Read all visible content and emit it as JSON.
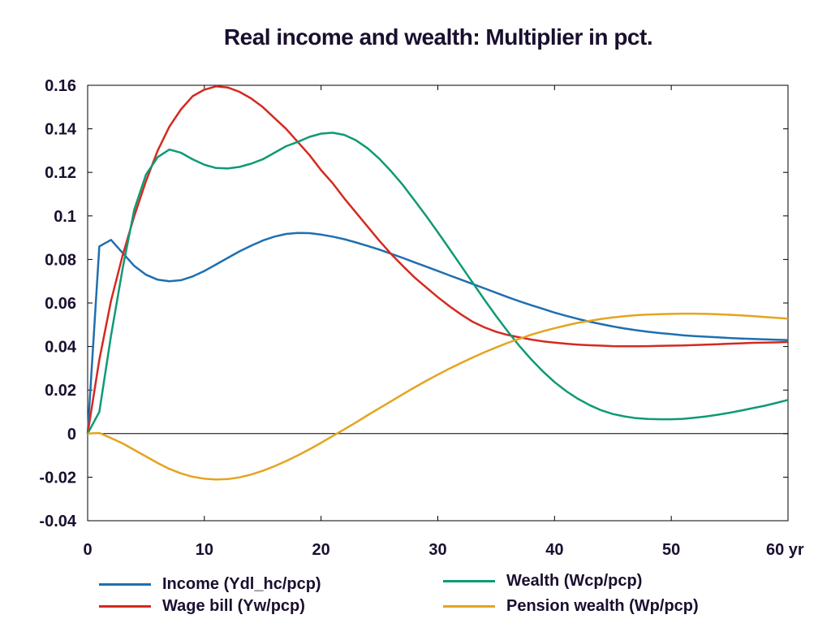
{
  "chart_data": {
    "type": "line",
    "title": "Real income and wealth: Multiplier in pct.",
    "xlabel": "",
    "ylabel": "",
    "xlim": [
      0,
      60
    ],
    "ylim": [
      -0.04,
      0.16
    ],
    "x_ticks": [
      "0",
      "10",
      "20",
      "30",
      "40",
      "50",
      "60 yr"
    ],
    "y_ticks": [
      "0.16",
      "0.14",
      "0.12",
      "0.1",
      "0.08",
      "0.06",
      "0.04",
      "0.02",
      "0",
      "-0.02",
      "-0.04"
    ],
    "x": [
      0,
      1,
      2,
      3,
      4,
      5,
      6,
      7,
      8,
      9,
      10,
      11,
      12,
      13,
      14,
      15,
      16,
      17,
      18,
      19,
      20,
      21,
      22,
      23,
      24,
      25,
      26,
      27,
      28,
      29,
      30,
      31,
      32,
      33,
      34,
      35,
      36,
      37,
      38,
      39,
      40,
      41,
      42,
      43,
      44,
      45,
      46,
      47,
      48,
      49,
      50,
      51,
      52,
      53,
      54,
      55,
      56,
      57,
      58,
      59,
      60
    ],
    "series": [
      {
        "name": "Income (Ydl_hc/pcp)",
        "color": "#1f6fb0",
        "values": [
          0,
          0.086,
          0.089,
          0.083,
          0.077,
          0.073,
          0.0707,
          0.07,
          0.0705,
          0.0722,
          0.0747,
          0.0777,
          0.0807,
          0.0837,
          0.0863,
          0.0887,
          0.0905,
          0.0917,
          0.0922,
          0.0921,
          0.0914,
          0.0905,
          0.0893,
          0.0878,
          0.0862,
          0.0845,
          0.0826,
          0.0807,
          0.0787,
          0.0767,
          0.0747,
          0.0727,
          0.0707,
          0.0687,
          0.0667,
          0.0647,
          0.0627,
          0.0608,
          0.059,
          0.0573,
          0.0556,
          0.0541,
          0.0527,
          0.0514,
          0.0503,
          0.0492,
          0.0483,
          0.0475,
          0.0468,
          0.0462,
          0.0457,
          0.0452,
          0.0448,
          0.0445,
          0.0442,
          0.0439,
          0.0437,
          0.0435,
          0.0433,
          0.0431,
          0.043
        ]
      },
      {
        "name": "Wage bill (Yw/pcp)",
        "color": "#d42a20",
        "values": [
          0,
          0.034,
          0.061,
          0.082,
          0.1,
          0.116,
          0.13,
          0.141,
          0.149,
          0.155,
          0.158,
          0.1595,
          0.159,
          0.157,
          0.154,
          0.15,
          0.145,
          0.14,
          0.134,
          0.128,
          0.121,
          0.115,
          0.108,
          0.1015,
          0.095,
          0.0885,
          0.0825,
          0.077,
          0.0718,
          0.0672,
          0.0627,
          0.0585,
          0.0547,
          0.0513,
          0.0488,
          0.0468,
          0.0453,
          0.0442,
          0.0432,
          0.0424,
          0.0418,
          0.0413,
          0.0409,
          0.0406,
          0.0404,
          0.0402,
          0.0401,
          0.0401,
          0.0402,
          0.0403,
          0.0404,
          0.0405,
          0.0407,
          0.0409,
          0.0411,
          0.0413,
          0.0415,
          0.0417,
          0.0418,
          0.0419,
          0.0421
        ]
      },
      {
        "name": "Wealth (Wcp/pcp)",
        "color": "#0f9a75",
        "values": [
          0,
          0.01,
          0.045,
          0.076,
          0.103,
          0.119,
          0.127,
          0.1305,
          0.129,
          0.126,
          0.1235,
          0.122,
          0.1218,
          0.1225,
          0.124,
          0.126,
          0.129,
          0.132,
          0.134,
          0.1363,
          0.1378,
          0.1382,
          0.1372,
          0.1347,
          0.131,
          0.1262,
          0.1205,
          0.1142,
          0.1072,
          0.1,
          0.0925,
          0.0848,
          0.077,
          0.0692,
          0.0615,
          0.054,
          0.0469,
          0.0402,
          0.0341,
          0.0286,
          0.0237,
          0.0195,
          0.016,
          0.0131,
          0.0107,
          0.009,
          0.0079,
          0.0071,
          0.0067,
          0.0066,
          0.0066,
          0.0068,
          0.0073,
          0.0079,
          0.0087,
          0.0096,
          0.0106,
          0.0117,
          0.0128,
          0.0141,
          0.0155
        ]
      },
      {
        "name": "Pension wealth (Wp/pcp)",
        "color": "#e5a41e",
        "values": [
          0,
          0.0003,
          -0.002,
          -0.0045,
          -0.0075,
          -0.0105,
          -0.0135,
          -0.0162,
          -0.0183,
          -0.0198,
          -0.0207,
          -0.0211,
          -0.0209,
          -0.0201,
          -0.0188,
          -0.0171,
          -0.015,
          -0.0126,
          -0.01,
          -0.0072,
          -0.0042,
          -0.0011,
          0.002,
          0.0052,
          0.0085,
          0.0117,
          0.0149,
          0.0181,
          0.0212,
          0.0242,
          0.0271,
          0.0299,
          0.0325,
          0.035,
          0.0374,
          0.0396,
          0.0417,
          0.0436,
          0.0454,
          0.047,
          0.0484,
          0.0497,
          0.0509,
          0.0518,
          0.0527,
          0.0534,
          0.0539,
          0.0544,
          0.0547,
          0.0549,
          0.055,
          0.0551,
          0.0551,
          0.055,
          0.0548,
          0.0546,
          0.0543,
          0.054,
          0.0536,
          0.0532,
          0.0528
        ]
      }
    ],
    "grid": false,
    "legend_position": "bottom"
  }
}
